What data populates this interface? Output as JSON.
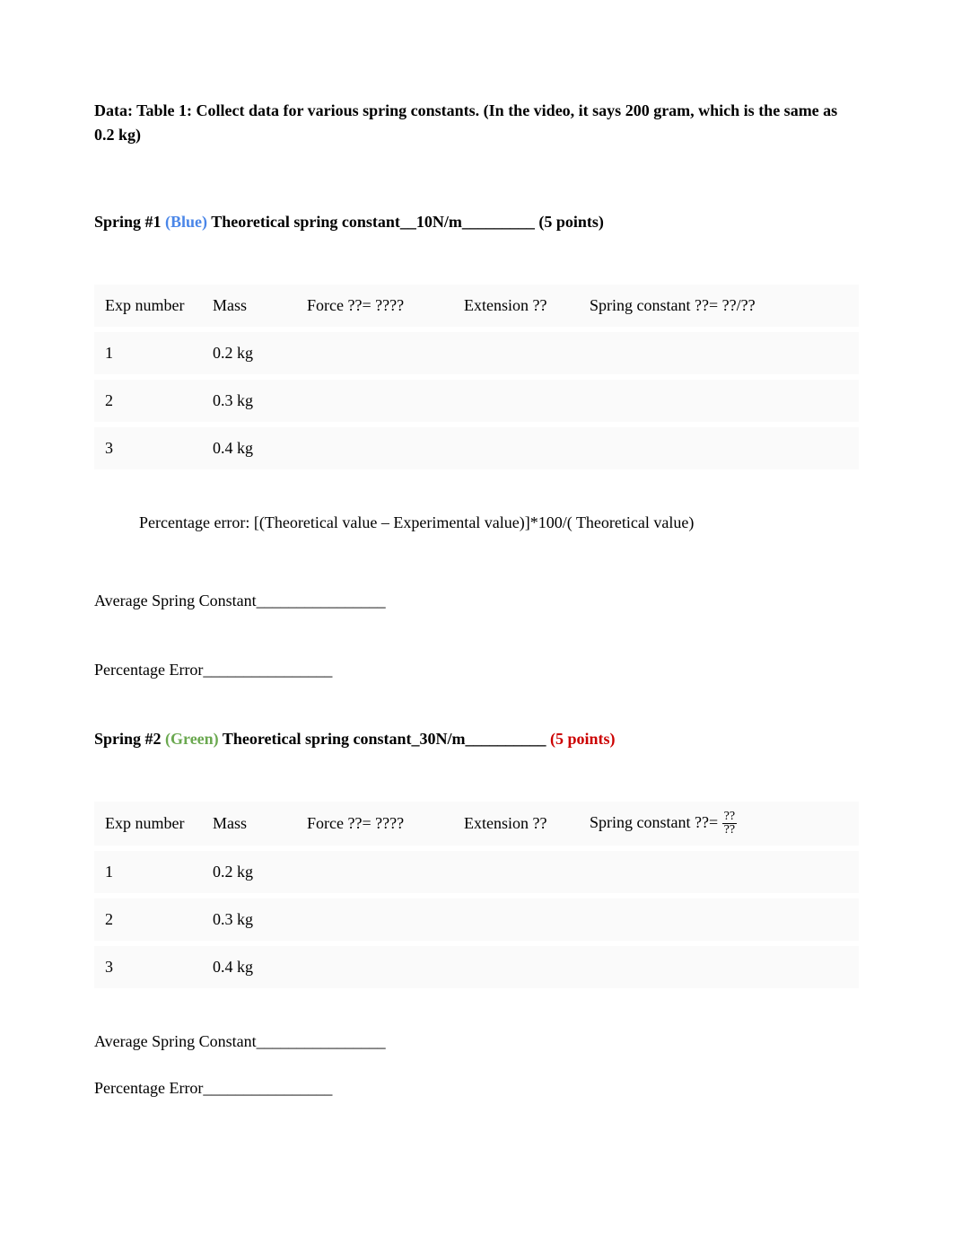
{
  "heading": "Data: Table 1: Collect data for various spring constants. (In the video, it says 200 gram, which is the same as 0.2 kg)",
  "spring1": {
    "prefix": "Spring #1 ",
    "color_label": "(Blue)",
    "suffix": "  Theoretical spring constant__10N/m_________    (5 points)"
  },
  "table_headers": {
    "exp": "Exp number",
    "mass": "Mass",
    "force": "Force ??= ????",
    "ext": "Extension ??",
    "spring1": "Spring constant ??= ??/??",
    "spring2_pre": "Spring constant   ??= ",
    "frac_num": "??",
    "frac_den": "??"
  },
  "rows": [
    {
      "exp": "1",
      "mass": "0.2 kg"
    },
    {
      "exp": "2",
      "mass": "0.3 kg"
    },
    {
      "exp": "3",
      "mass": "0.4 kg"
    }
  ],
  "formula": "Percentage error: [(Theoretical value – Experimental value)]*100/( Theoretical value)",
  "avg_label": "Average Spring Constant________________",
  "pct_label": "Percentage Error________________",
  "spring2": {
    "prefix": "Spring #2 ",
    "color_label": "(Green)",
    "mid": "   Theoretical spring constant_30N/m__________    ",
    "points": "(5 points)"
  }
}
